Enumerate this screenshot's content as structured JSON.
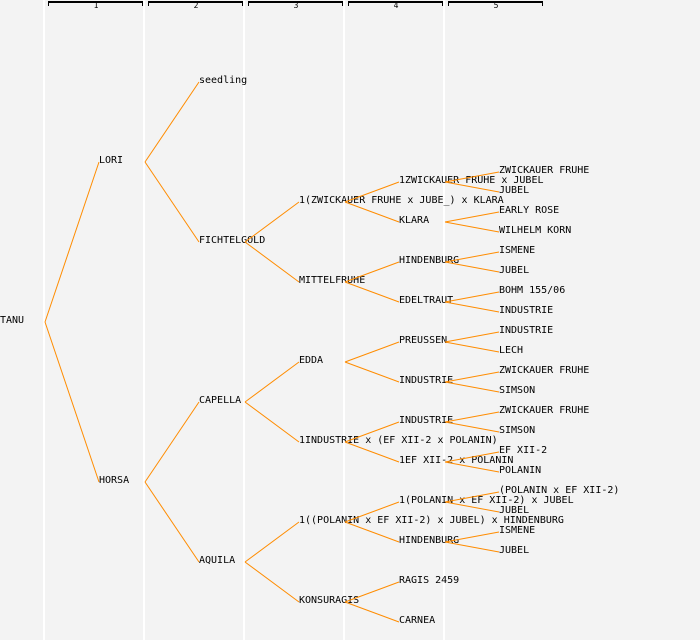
{
  "generation_headers": [
    "1",
    "2",
    "3",
    "4",
    "5"
  ],
  "line_color": "#ff8c00",
  "tree": {
    "gen0": [
      "TANU"
    ],
    "gen1": [
      "LORI",
      "HORSA"
    ],
    "gen2": [
      "seedling",
      "FICHTELGOLD",
      "CAPELLA",
      "AQUILA"
    ],
    "gen3": [
      null,
      null,
      "1(ZWICKAUER FRUHE x JUBE_) x KLARA",
      "MITTELFRUHE",
      "EDDA",
      "1INDUSTRIE x (EF XII-2 x POLANIN)",
      "1((POLANIN x EF XII-2) x JUBEL) x HINDENBURG",
      "KONSURAGIS"
    ],
    "gen4": [
      null,
      null,
      null,
      null,
      "1ZWICKAUER FRUHE x JUBEL",
      "KLARA",
      "HINDENBURG",
      "EDELTRAUT",
      "PREUSSEN",
      "INDUSTRIE",
      "INDUSTRIE",
      "1EF XII-2 x POLANIN",
      "1(POLANIN x EF XII-2) x JUBEL",
      "HINDENBURG",
      "RAGIS 2459",
      "CARNEA"
    ],
    "gen5": [
      null,
      null,
      null,
      null,
      null,
      null,
      null,
      null,
      "ZWICKAUER FRUHE",
      "JUBEL",
      "EARLY ROSE",
      "WILHELM KORN",
      "ISMENE",
      "JUBEL",
      "BOHM 155/06",
      "INDUSTRIE",
      "INDUSTRIE",
      "LECH",
      "ZWICKAUER FRUHE",
      "SIMSON",
      "ZWICKAUER FRUHE",
      "SIMSON",
      "EF XII-2",
      "POLANIN",
      "(POLANIN x EF XII-2)",
      "JUBEL",
      "ISMENE",
      "JUBEL",
      null,
      null,
      null,
      null
    ]
  }
}
